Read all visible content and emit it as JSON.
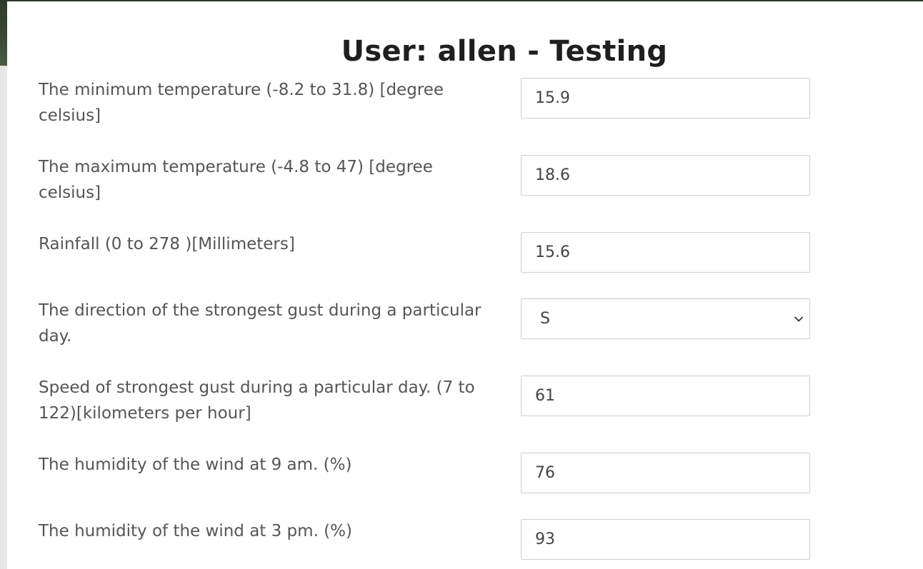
{
  "header": {
    "title": "User: allen - Testing"
  },
  "form": {
    "fields": [
      {
        "label": "The minimum temperature (-8.2 to 31.8) [degree celsius]",
        "value": "15.9"
      },
      {
        "label": "The maximum temperature (-4.8 to 47) [degree celsius]",
        "value": "18.6"
      },
      {
        "label": "Rainfall (0 to 278 )[Millimeters]",
        "value": "15.6"
      },
      {
        "label": "The direction of the strongest gust during a particular day.",
        "value": "S"
      },
      {
        "label": "Speed of strongest gust during a particular day. (7 to 122)[kilometers per hour]",
        "value": "61"
      },
      {
        "label": "The humidity of the wind at 9 am. (%)",
        "value": "76"
      },
      {
        "label": "The humidity of the wind at 3 pm. (%)",
        "value": "93"
      }
    ]
  },
  "icons": {
    "select_arrow": "chevron-down-icon"
  }
}
